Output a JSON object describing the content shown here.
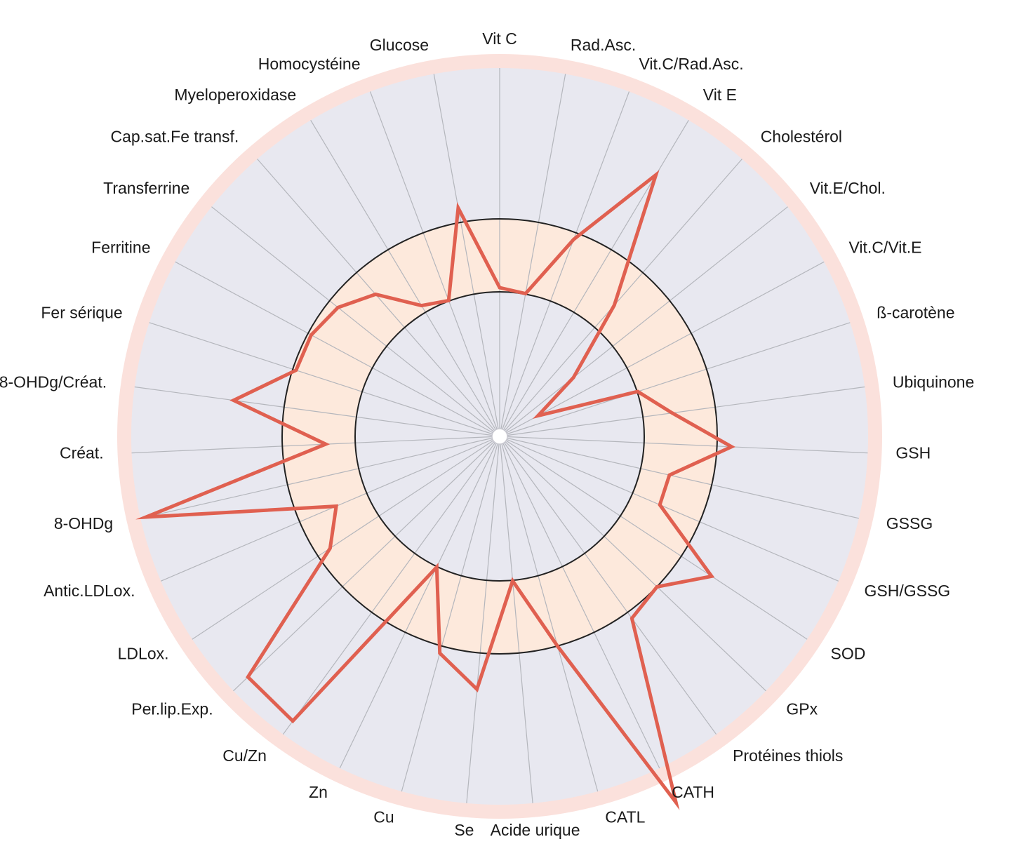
{
  "chart_data": {
    "type": "radar",
    "title": "",
    "axes": [
      "Vit C",
      "Rad.Asc.",
      "Vit.C/Rad.Asc.",
      "Vit E",
      "Cholestérol",
      "Vit.E/Chol.",
      "Vit.C/Vit.E",
      "ß-carotène",
      "Ubiquinone",
      "GSH",
      "GSSG",
      "GSH/GSSG",
      "SOD",
      "GPx",
      "Protéines thiols",
      "CATH",
      "CATL",
      "Acide urique",
      "Se",
      "Cu",
      "Zn",
      "Cu/Zn",
      "Per.lip.Exp.",
      "LDLox.",
      "Antic.LDLox.",
      "8-OHDg",
      "Créat.",
      "8-OHDg/Créat.",
      "Fer sérique",
      "Ferritine",
      "Transferrine",
      "Cap.sat.Fe transf.",
      "Myeloperoxidase",
      "Homocystéine",
      "Glucose"
    ],
    "series": [
      {
        "values": [
          0.41,
          0.4,
          0.58,
          0.84,
          0.48,
          0.26,
          0.12,
          0.4,
          0.48,
          0.64,
          0.48,
          0.48,
          0.7,
          0.6,
          0.62,
          1.12,
          0.6,
          0.4,
          0.7,
          0.62,
          0.4,
          0.97,
          0.96,
          0.56,
          0.49,
          1.0,
          0.48,
          0.74,
          0.59,
          0.59,
          0.57,
          0.52,
          0.42,
          0.4,
          0.64
        ]
      }
    ],
    "reference_band": [
      0.4,
      0.6
    ],
    "rlim": [
      0,
      1.2
    ],
    "colors": {
      "series": "#e06050",
      "band": "#fde9dc",
      "plot_background": "#e8e8f0",
      "outer_ring": "#fbe1dc",
      "spokes": "#b4b6bc",
      "band_edge": "#222222"
    }
  }
}
